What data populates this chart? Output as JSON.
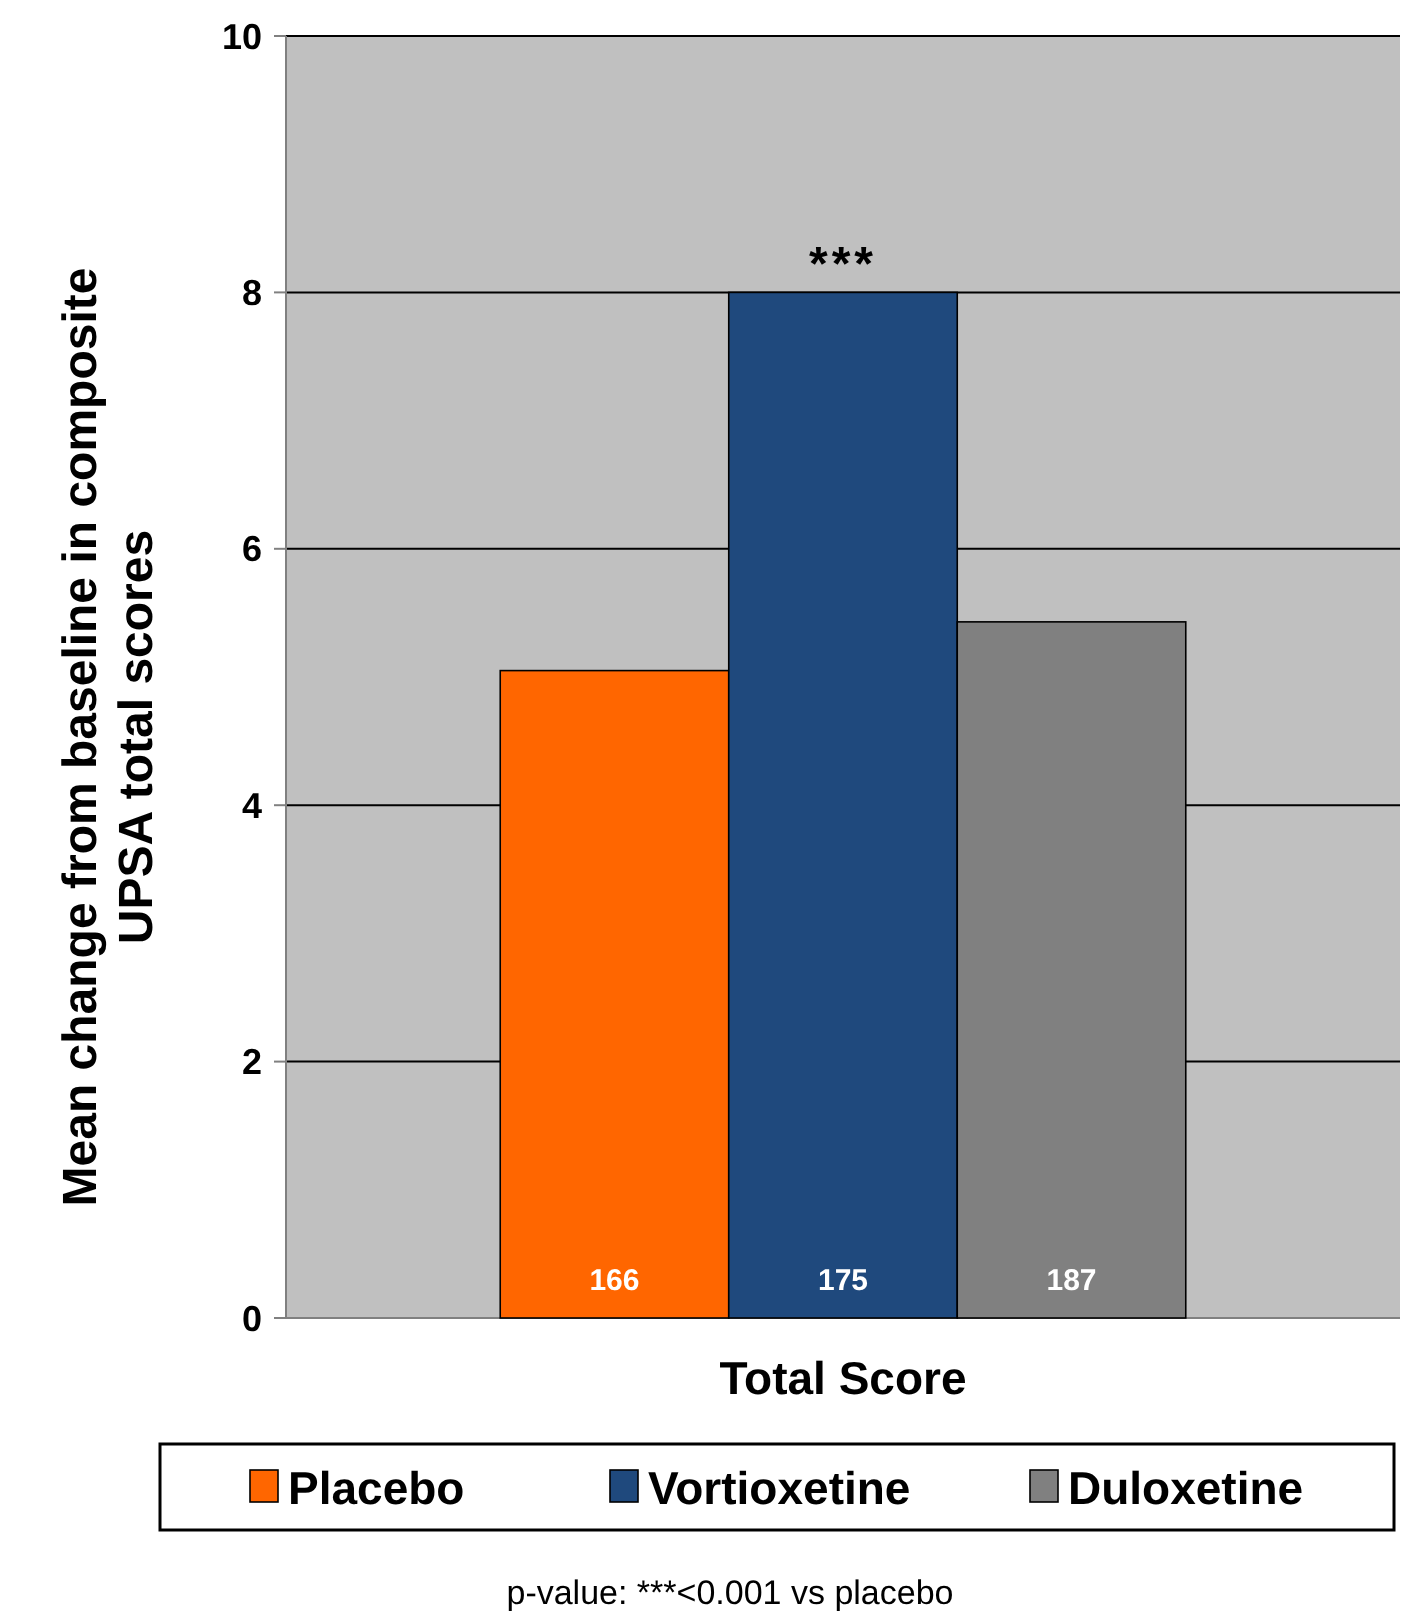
{
  "chart_data": {
    "type": "bar",
    "ylabel": "Mean change from baseline in composite UPSA total scores",
    "categories": [
      "Total Score"
    ],
    "series": [
      {
        "name": "Placebo",
        "color": "#ff6600",
        "values": [
          5.05
        ]
      },
      {
        "name": "Vortioxetine",
        "color": "#1f497d",
        "values": [
          8.0
        ]
      },
      {
        "name": "Duloxetine",
        "color": "#808080",
        "values": [
          5.43
        ]
      }
    ],
    "ylim": [
      0,
      10
    ],
    "yticks": [
      0,
      2,
      4,
      6,
      8,
      10
    ],
    "grid": "y",
    "legend": "bottom",
    "annotations": [
      "166",
      "175",
      "187",
      {
        "text": "***",
        "x": "Total Score",
        "y": 8.0
      },
      "p-value: ***<0.001 vs placebo"
    ]
  }
}
